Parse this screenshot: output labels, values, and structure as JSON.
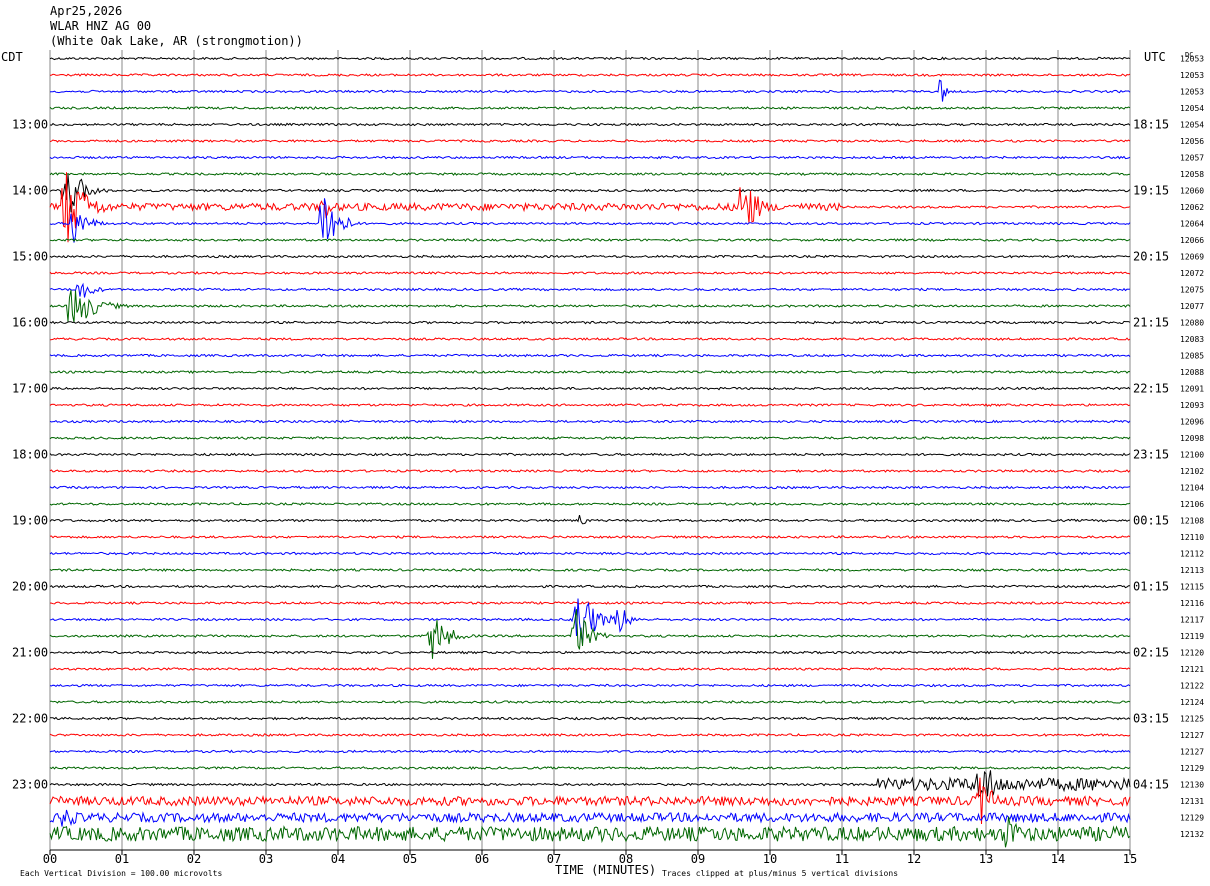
{
  "header": {
    "date": "Apr25,2026",
    "station": "WLAR HNZ AG 00",
    "location": "(White Oak Lake, AR (strongmotion))"
  },
  "left_zone_label": "CDT",
  "right_zone_label": "UTC",
  "dc_label": "DC",
  "footer": {
    "scale_note": "Each Vertical Division =  100.00 microvolts",
    "xlabel": "TIME (MINUTES)",
    "clip_note": "Traces clipped at plus/minus 5 vertical divisions"
  },
  "colors": {
    "cycle": [
      "#000000",
      "#ff0000",
      "#0000ff",
      "#006600"
    ],
    "grid": "#888888"
  },
  "chart_data": {
    "type": "line",
    "xlabel": "TIME (MINUTES)",
    "xlim": [
      0,
      15
    ],
    "x_ticks": [
      "00",
      "01",
      "02",
      "03",
      "04",
      "05",
      "06",
      "07",
      "08",
      "09",
      "10",
      "11",
      "12",
      "13",
      "14",
      "15"
    ],
    "trace_count": 48,
    "left_hour_labels": [
      {
        "trace": 4,
        "label": "13:00"
      },
      {
        "trace": 8,
        "label": "14:00"
      },
      {
        "trace": 12,
        "label": "15:00"
      },
      {
        "trace": 16,
        "label": "16:00"
      },
      {
        "trace": 20,
        "label": "17:00"
      },
      {
        "trace": 24,
        "label": "18:00"
      },
      {
        "trace": 28,
        "label": "19:00"
      },
      {
        "trace": 32,
        "label": "20:00"
      },
      {
        "trace": 36,
        "label": "21:00"
      },
      {
        "trace": 40,
        "label": "22:00"
      },
      {
        "trace": 44,
        "label": "23:00"
      }
    ],
    "right_hour_labels": [
      {
        "trace": 4,
        "label": "18:15"
      },
      {
        "trace": 8,
        "label": "19:15"
      },
      {
        "trace": 12,
        "label": "20:15"
      },
      {
        "trace": 16,
        "label": "21:15"
      },
      {
        "trace": 20,
        "label": "22:15"
      },
      {
        "trace": 24,
        "label": "23:15"
      },
      {
        "trace": 28,
        "label": "00:15"
      },
      {
        "trace": 32,
        "label": "01:15"
      },
      {
        "trace": 36,
        "label": "02:15"
      },
      {
        "trace": 40,
        "label": "03:15"
      },
      {
        "trace": 44,
        "label": "04:15"
      }
    ],
    "dc_offsets": [
      "12053",
      "12053",
      "12053",
      "12054",
      "12054",
      "12056",
      "12057",
      "12058",
      "12060",
      "12062",
      "12064",
      "12066",
      "12069",
      "12072",
      "12075",
      "12077",
      "12080",
      "12083",
      "12085",
      "12088",
      "12091",
      "12093",
      "12096",
      "12098",
      "12100",
      "12102",
      "12104",
      "12106",
      "12108",
      "12110",
      "12112",
      "12113",
      "12115",
      "12116",
      "12117",
      "12119",
      "12120",
      "12121",
      "12122",
      "12124",
      "12125",
      "12127",
      "12127",
      "12129",
      "12130",
      "12131",
      "12129",
      "12132"
    ],
    "events": [
      {
        "trace": 8,
        "minute": 0.2,
        "amp": 4.0,
        "dur": 0.6
      },
      {
        "trace": 9,
        "minute": 0.2,
        "amp": 5.0,
        "dur": 0.8
      },
      {
        "trace": 10,
        "minute": 0.3,
        "amp": 3.0,
        "dur": 0.5
      },
      {
        "trace": 14,
        "minute": 0.4,
        "amp": 1.5,
        "dur": 0.5
      },
      {
        "trace": 15,
        "minute": 0.3,
        "amp": 3.0,
        "dur": 0.8
      },
      {
        "trace": 10,
        "minute": 3.8,
        "amp": 5.0,
        "dur": 0.5
      },
      {
        "trace": 9,
        "minute": 3.8,
        "amp": 2.0,
        "dur": 0.3
      },
      {
        "trace": 9,
        "minute": 9.6,
        "amp": 5.0,
        "dur": 0.5
      },
      {
        "trace": 2,
        "minute": 12.4,
        "amp": 2.5,
        "dur": 0.1
      },
      {
        "trace": 34,
        "minute": 7.3,
        "amp": 5.0,
        "dur": 0.6
      },
      {
        "trace": 35,
        "minute": 7.3,
        "amp": 3.5,
        "dur": 0.5
      },
      {
        "trace": 35,
        "minute": 5.3,
        "amp": 3.0,
        "dur": 0.6
      },
      {
        "trace": 34,
        "minute": 7.9,
        "amp": 2.0,
        "dur": 0.4
      },
      {
        "trace": 28,
        "minute": 7.4,
        "amp": 1.2,
        "dur": 0.1
      },
      {
        "trace": 44,
        "minute": 12.9,
        "amp": 3.0,
        "dur": 0.8
      },
      {
        "trace": 45,
        "minute": 12.9,
        "amp": 3.5,
        "dur": 0.5
      },
      {
        "trace": 47,
        "minute": 13.3,
        "amp": 3.0,
        "dur": 0.4
      },
      {
        "trace": 46,
        "minute": 0.2,
        "amp": 2.0,
        "dur": 0.4
      }
    ],
    "noisy_traces": [
      {
        "trace": 44,
        "start": 11.5,
        "end": 15.0,
        "amp": 0.7
      },
      {
        "trace": 45,
        "start": 0.0,
        "end": 15.0,
        "amp": 0.5
      },
      {
        "trace": 46,
        "start": 0.0,
        "end": 15.0,
        "amp": 0.5
      },
      {
        "trace": 47,
        "start": 0.0,
        "end": 15.0,
        "amp": 0.8
      },
      {
        "trace": 9,
        "start": 0.0,
        "end": 11.0,
        "amp": 0.4
      }
    ]
  }
}
